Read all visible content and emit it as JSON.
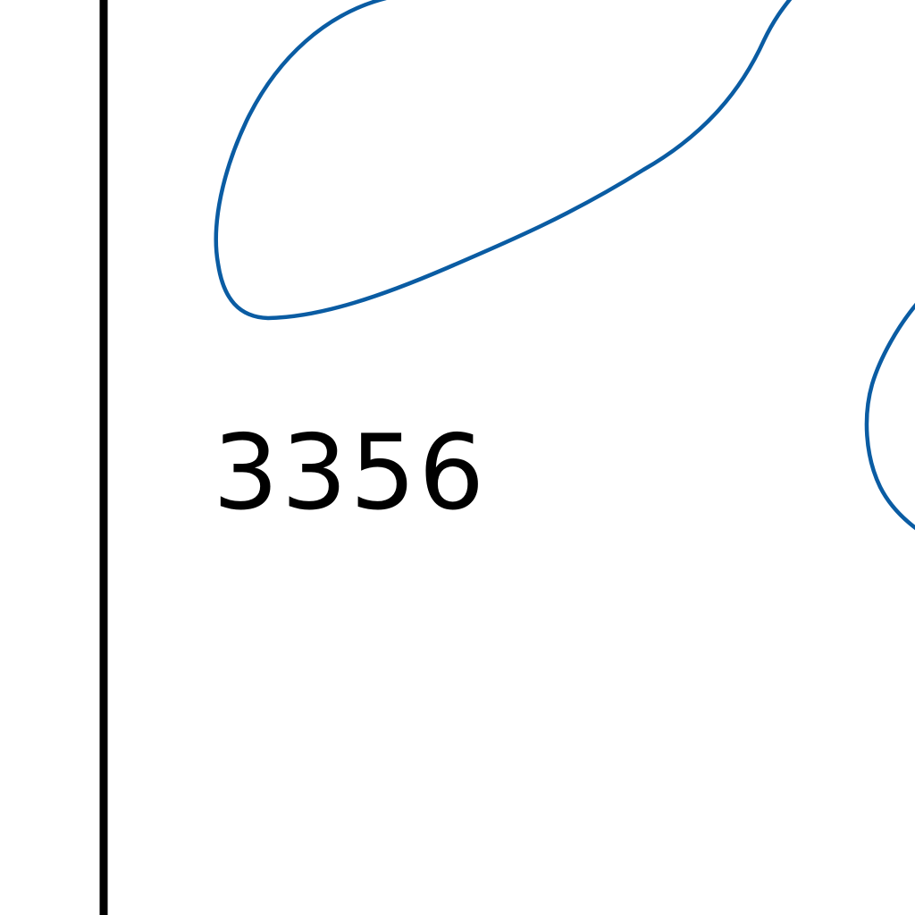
{
  "map": {
    "elevation_label": "3356",
    "colors": {
      "background": "#ffffff",
      "contour_line": "#0a5ca3",
      "boundary_line": "#000000",
      "label_text": "#000000"
    },
    "features": [
      {
        "name": "contour-line-upper",
        "type": "contour",
        "icon": "contour-line"
      },
      {
        "name": "contour-line-right",
        "type": "contour",
        "icon": "contour-line"
      },
      {
        "name": "boundary-line",
        "type": "boundary",
        "icon": "vertical-line"
      }
    ]
  }
}
